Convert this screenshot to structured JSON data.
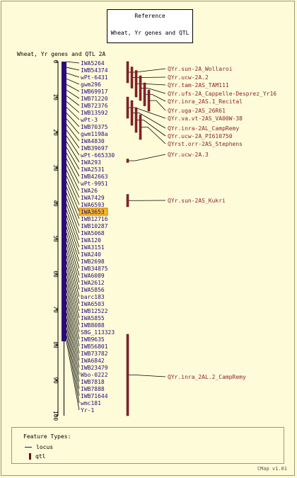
{
  "reference": {
    "title": "Reference",
    "subtitle": "Wheat, Yr genes and QTL"
  },
  "map": {
    "title": "Wheat, Yr genes and QTL 2A",
    "scale_ticks": [
      0,
      10,
      20,
      30,
      40,
      50,
      60,
      70,
      80,
      90,
      100
    ],
    "scale_range": [
      0,
      100
    ],
    "highlighted_marker": "IWA3653",
    "marker_color": "#2c0a7a",
    "qtl_color": "#8a2430",
    "highlight_color": "#f7b82c",
    "markers": [
      "IWA5264",
      "IWB54374",
      "wPt-6431",
      "gwm296",
      "IWB69917",
      "IWB71220",
      "IWB72376",
      "IWB13592",
      "wPt-3",
      "IWB70375",
      "gwm1198a",
      "IWA4830",
      "IWB39697",
      "wPt-665330",
      "IWA293",
      "IWA2531",
      "IWB42663",
      "wPt-9951",
      "IWA26",
      "IWA7429",
      "IWA6593",
      "IWA3653",
      "IWB12716",
      "IWB10287",
      "IWA5068",
      "IWA120",
      "IWA3151",
      "IWA240",
      "IWB2698",
      "IWB34875",
      "IWA6089",
      "IWA2612",
      "IWA5856",
      "barc183",
      "IWA6503",
      "IWB12522",
      "IWA5855",
      "IWB8088",
      "SBG_113323",
      "IWB9635",
      "IWB56801",
      "IWB73782",
      "IWA6842",
      "IWB23479",
      "Wbo-0222",
      "IWB7818",
      "IWB7888",
      "IWB71644",
      "wmc181",
      "Yr-1"
    ],
    "qtls": [
      {
        "label": "QYr.sun-2A_Wollaroi",
        "start": 0,
        "end": 6
      },
      {
        "label": "QYr.ucw-2A.2",
        "start": 1.5,
        "end": 7.5
      },
      {
        "label": "QYr.tam-2AS_TAM111",
        "start": 2.5,
        "end": 10
      },
      {
        "label": "QYr.ufs-2A_Cappelle-Desprez_Yr16",
        "start": 4,
        "end": 11
      },
      {
        "label": "QYr.inra_2AS.1_Recital",
        "start": 6,
        "end": 12.5
      },
      {
        "label": "QYr.uga-2AS_26R61",
        "start": 8,
        "end": 14
      },
      {
        "label": "QYr.va.vt-2AS_VA00W-38",
        "start": 10,
        "end": 16
      },
      {
        "label": "QYr.inra-2AL_CampRemy",
        "start": 11,
        "end": 18
      },
      {
        "label": "QYr.ucw-2A_PI610750",
        "start": 13,
        "end": 20
      },
      {
        "label": "QYrst.orr-2AS_Stephens",
        "start": 15,
        "end": 22
      },
      {
        "label": "QYr.ucw-2A.3",
        "start": 27.5,
        "end": 28.5
      },
      {
        "label": "QYr.sun-2AS_Kukri",
        "start": 37.5,
        "end": 41
      },
      {
        "label": "QYr.inra_2AL.2_CampRemy",
        "start": 77,
        "end": 100
      }
    ]
  },
  "legend": {
    "title": "Feature Types:",
    "locus": "locus",
    "qtl": "qtl"
  },
  "version": "CMap v1.01"
}
